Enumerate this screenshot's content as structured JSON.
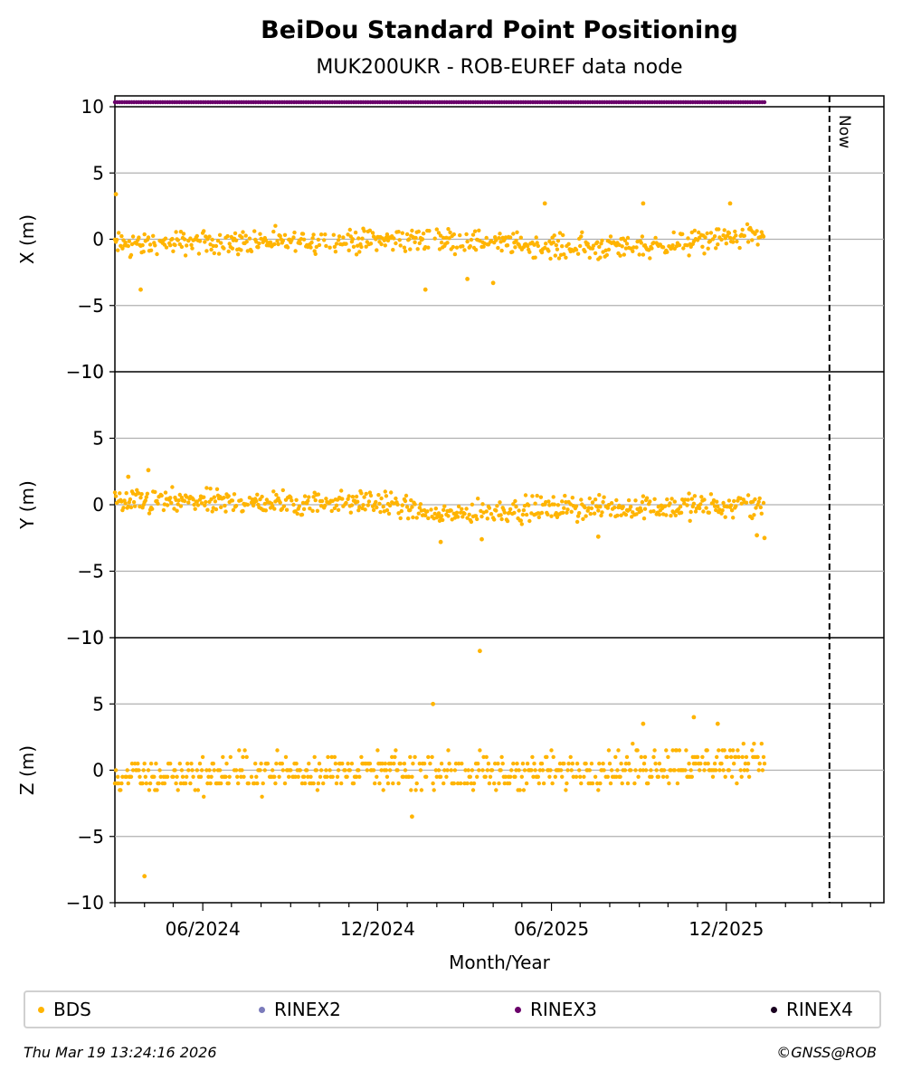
{
  "chart_data": {
    "type": "scatter",
    "title": "BeiDou Standard Point Positioning",
    "subtitle": "MUK200UKR - ROB-EUREF data node",
    "xlabel": "Month/Year",
    "x_tick_labels": [
      "06/2024",
      "12/2024",
      "06/2025",
      "12/2025"
    ],
    "x_range": [
      "2024-03-01",
      "2026-05-15"
    ],
    "now_date": "2026-03-19",
    "now_label": "Now",
    "data_span": [
      "2024-03-01",
      "2026-01-10"
    ],
    "panels": [
      {
        "ylabel": "X (m)",
        "ylim": [
          -10,
          10
        ],
        "yticks": [
          10,
          5,
          0,
          -5,
          -10
        ],
        "grid": true,
        "trend": [
          [
            0,
            -0.4
          ],
          [
            0.5,
            0.0
          ],
          [
            0.7,
            -0.6
          ],
          [
            0.85,
            -0.5
          ],
          [
            1.0,
            0.5
          ]
        ],
        "spread": 0.8,
        "outliers": [
          [
            "2024-03-02",
            3.4
          ],
          [
            "2024-03-28",
            -3.8
          ],
          [
            "2025-01-20",
            -3.8
          ],
          [
            "2025-04-01",
            -3.3
          ],
          [
            "2025-05-25",
            2.7
          ],
          [
            "2025-09-05",
            2.7
          ],
          [
            "2025-12-05",
            2.7
          ],
          [
            "2025-03-05",
            -3.0
          ]
        ]
      },
      {
        "ylabel": "Y (m)",
        "ylim": [
          -10,
          10
        ],
        "yticks": [
          10,
          5,
          0,
          -5,
          -10
        ],
        "grid": true,
        "trend": [
          [
            0,
            0.2
          ],
          [
            0.4,
            0.2
          ],
          [
            0.5,
            -0.8
          ],
          [
            0.65,
            -0.3
          ],
          [
            1.0,
            0.0
          ]
        ],
        "spread": 0.8,
        "outliers": [
          [
            "2024-04-05",
            2.6
          ],
          [
            "2025-02-05",
            -2.8
          ],
          [
            "2025-03-20",
            -2.6
          ],
          [
            "2025-07-20",
            -2.4
          ],
          [
            "2026-01-02",
            -2.3
          ],
          [
            "2026-01-10",
            -2.5
          ],
          [
            "2024-03-15",
            2.1
          ]
        ]
      },
      {
        "ylabel": "Z (m)",
        "ylim": [
          -10,
          10
        ],
        "yticks": [
          10,
          5,
          0,
          -5,
          -10
        ],
        "grid": true,
        "trend": [
          [
            0,
            -0.6
          ],
          [
            0.3,
            0.0
          ],
          [
            0.6,
            -0.3
          ],
          [
            1.0,
            0.8
          ]
        ],
        "spread": 1.2,
        "outliers": [
          [
            "2024-04-01",
            -8.0
          ],
          [
            "2025-01-06",
            -3.5
          ],
          [
            "2025-01-28",
            5.0
          ],
          [
            "2025-03-18",
            9.0
          ],
          [
            "2025-09-05",
            3.5
          ],
          [
            "2025-10-28",
            4.0
          ],
          [
            "2025-11-22",
            3.5
          ]
        ]
      }
    ],
    "availability": {
      "color": "#6a006a",
      "start": "2024-03-01",
      "end": "2026-01-10"
    },
    "legend": [
      {
        "label": "BDS",
        "color": "#ffb400"
      },
      {
        "label": "RINEX2",
        "color": "#7b7bbb"
      },
      {
        "label": "RINEX3",
        "color": "#6a006a"
      },
      {
        "label": "RINEX4",
        "color": "#1a0020"
      }
    ],
    "legend_placement": "bottom"
  },
  "footer": {
    "timestamp": "Thu Mar 19 13:24:16 2026",
    "copyright": "©GNSS@ROB"
  }
}
